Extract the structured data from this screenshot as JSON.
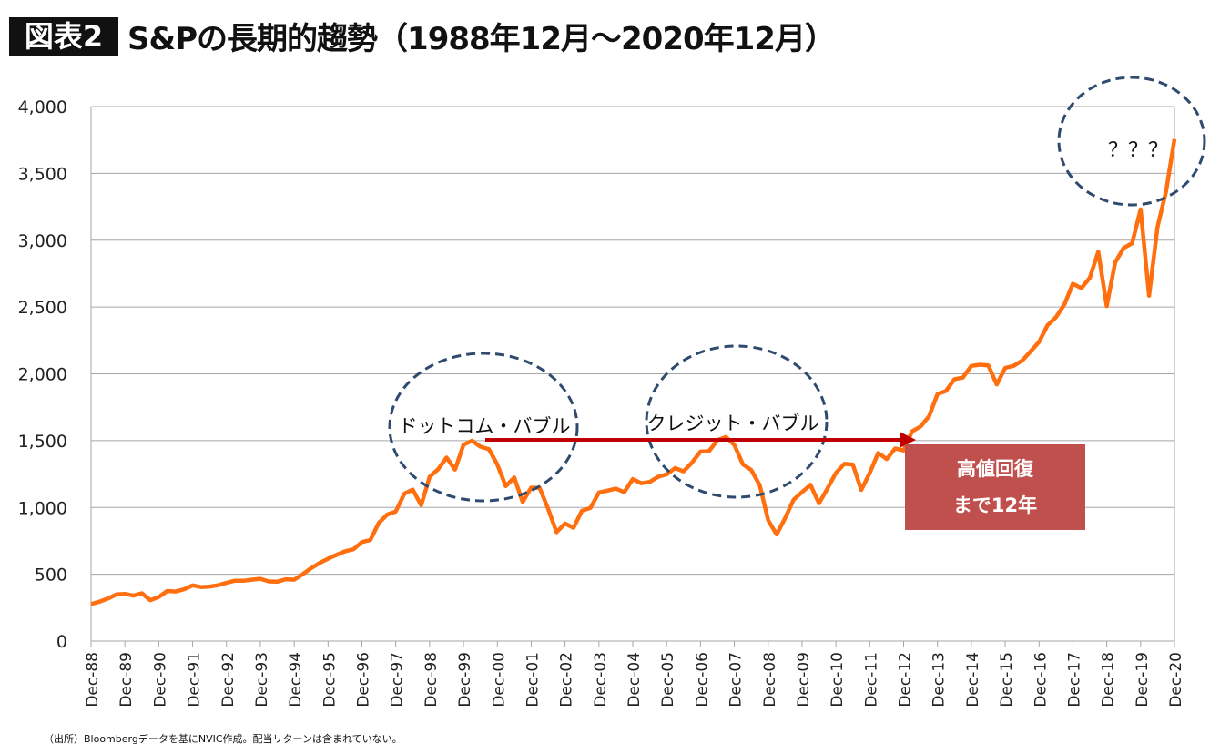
{
  "header": {
    "badge": "図表2",
    "title": "S&Pの長期的趨勢（1988年12月～2020年12月）"
  },
  "footnote": "（出所）Bloombergデータを基にNVIC作成。配当リターンは含まれていない。",
  "chart_data": {
    "type": "line",
    "title": "S&Pの長期的趨勢（1988年12月～2020年12月）",
    "ylim": [
      0,
      4000
    ],
    "yticks": [
      0,
      500,
      1000,
      1500,
      2000,
      2500,
      3000,
      3500,
      4000
    ],
    "ytick_labels": [
      "0",
      "500",
      "1,000",
      "1,500",
      "2,000",
      "2,500",
      "3,000",
      "3,500",
      "4,000"
    ],
    "xlim": [
      "1988-12",
      "2020-12"
    ],
    "xtick_labels": [
      "Dec-88",
      "Dec-89",
      "Dec-90",
      "Dec-91",
      "Dec-92",
      "Dec-93",
      "Dec-94",
      "Dec-95",
      "Dec-96",
      "Dec-97",
      "Dec-98",
      "Dec-99",
      "Dec-00",
      "Dec-01",
      "Dec-02",
      "Dec-03",
      "Dec-04",
      "Dec-05",
      "Dec-06",
      "Dec-07",
      "Dec-08",
      "Dec-09",
      "Dec-10",
      "Dec-11",
      "Dec-12",
      "Dec-13",
      "Dec-14",
      "Dec-15",
      "Dec-16",
      "Dec-17",
      "Dec-18",
      "Dec-19",
      "Dec-20"
    ],
    "grid": "horizontal",
    "line_color": "#ff6f0f",
    "start": "1988-12",
    "frequency": "quarterly",
    "values": [
      277,
      295,
      318,
      349,
      353,
      340,
      358,
      306,
      330,
      375,
      371,
      388,
      417,
      404,
      408,
      418,
      436,
      452,
      451,
      459,
      466,
      446,
      444,
      463,
      459,
      500,
      545,
      584,
      616,
      645,
      671,
      687,
      741,
      757,
      885,
      947,
      970,
      1102,
      1134,
      1017,
      1229,
      1286,
      1373,
      1283,
      1469,
      1499,
      1455,
      1436,
      1320,
      1160,
      1224,
      1041,
      1148,
      1147,
      990,
      815,
      880,
      848,
      975,
      996,
      1112,
      1126,
      1141,
      1115,
      1212,
      1181,
      1191,
      1229,
      1248,
      1295,
      1270,
      1336,
      1418,
      1421,
      1503,
      1527,
      1468,
      1323,
      1280,
      1166,
      903,
      798,
      919,
      1057,
      1115,
      1169,
      1031,
      1141,
      1258,
      1326,
      1321,
      1131,
      1258,
      1408,
      1362,
      1441,
      1426,
      1569,
      1606,
      1682,
      1848,
      1872,
      1960,
      1972,
      2059,
      2068,
      2063,
      1920,
      2044,
      2060,
      2099,
      2168,
      2239,
      2363,
      2423,
      2519,
      2674,
      2641,
      2718,
      2914,
      2507,
      2834,
      2942,
      2977,
      3231,
      2585,
      3100,
      3363,
      3756
    ],
    "annotations": [
      {
        "text": "ドットコム・バブル",
        "shape": "dashed-ellipse",
        "color": "#2e4a6e"
      },
      {
        "text": "クレジット・バブル",
        "shape": "dashed-ellipse",
        "color": "#2e4a6e"
      },
      {
        "text": "？？？",
        "shape": "dashed-ellipse",
        "color": "#2e4a6e"
      },
      {
        "shape": "arrow",
        "from": "2000-03",
        "to": "2013-01",
        "value": 1500,
        "color": "#c00000"
      },
      {
        "text_lines": [
          "高値回復",
          "まで12年"
        ],
        "shape": "box",
        "color": "#c0504d"
      }
    ]
  }
}
